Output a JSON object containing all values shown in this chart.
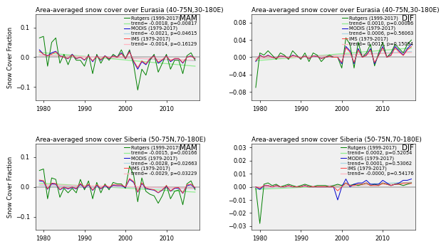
{
  "panels": [
    {
      "title": "Area-averaged snow cover over Eurasia (40-75N,30-180E)",
      "season": "MAM",
      "ylabel": "Snow Cover Fraction",
      "ylim": [
        -0.145,
        0.145
      ],
      "yticks": [
        -0.1,
        0.0,
        0.1
      ],
      "xlim": [
        1978,
        2018
      ],
      "xticks": [
        1980,
        1990,
        2000,
        2010
      ],
      "legend": [
        "Rutgers (1999-2017)",
        "trend= -0.0018, p=0.00817",
        "MODIS (1979-2017)",
        "trend= -0.0021, p=0.04615",
        "IMS (1979-2017)",
        "trend= -0.0014, p=0.16129"
      ]
    },
    {
      "title": "Area-averaged snow cover over Eurasia (40-75N,30-180E)",
      "season": "DJF",
      "ylabel": "Snow Cover Fraction",
      "ylim": [
        -0.1,
        0.1
      ],
      "yticks": [
        -0.08,
        -0.04,
        0.0,
        0.04,
        0.08
      ],
      "xlim": [
        1978,
        2018
      ],
      "xticks": [
        1980,
        1990,
        2000,
        2010
      ],
      "legend": [
        "Rutgers (1999-2017)",
        "trend= 0.0010, p=0.00086",
        "MODIS (1979-2017)",
        "trend= 0.0006, p=0.56063",
        "IMS (1979-2017)",
        "trend= 0.0012, p=0.15094"
      ]
    },
    {
      "title": "Area-averaged snow cover Siberia (50-75N,70-180E)",
      "season": "MAM",
      "ylabel": "Snow Cover Fraction",
      "ylim": [
        -0.145,
        0.145
      ],
      "yticks": [
        -0.1,
        0.0,
        0.1
      ],
      "xlim": [
        1978,
        2018
      ],
      "xticks": [
        1980,
        1990,
        2000,
        2010
      ],
      "legend": [
        "Rutgers (1999-2017)",
        "trend= -0.0015, p=0.00166",
        "MODIS (1979-2017)",
        "trend= -0.0028, p=0.02663",
        "IMS (1979-2017)",
        "trend= -0.0029, p=0.03229"
      ]
    },
    {
      "title": "Area-averaged snow cover Siberia (50-75N,70-180E)",
      "season": "DJF",
      "ylabel": "Snow Cover Fraction",
      "ylim": [
        -0.033,
        0.033
      ],
      "yticks": [
        -0.03,
        -0.02,
        -0.01,
        0.0,
        0.01,
        0.02,
        0.03
      ],
      "xlim": [
        1978,
        2018
      ],
      "xticks": [
        1980,
        1990,
        2000,
        2010
      ],
      "legend": [
        "Rutgers (1999-2017)",
        "trend= 0.0002, p=0.52054",
        "MODIS (1979-2017)",
        "trend= 0.0001, p=0.53062",
        "IMS (1979-2017)",
        "trend= -0.0000, p=0.54176"
      ]
    }
  ],
  "colors": {
    "rutgers": "#008000",
    "rutgers_trend": "#90EE90",
    "modis": "#0000CD",
    "modis_trend": "#ADD8E6",
    "ims": "#FF4040",
    "ims_trend": "#FFB6C1"
  },
  "bg_color": "#f0f0f0",
  "linewidth": 0.7,
  "trend_linewidth": 0.9,
  "fontsize_title": 6.5,
  "fontsize_season": 7.5,
  "fontsize_legend": 4.8,
  "fontsize_tick": 6,
  "fontsize_ylabel": 6
}
